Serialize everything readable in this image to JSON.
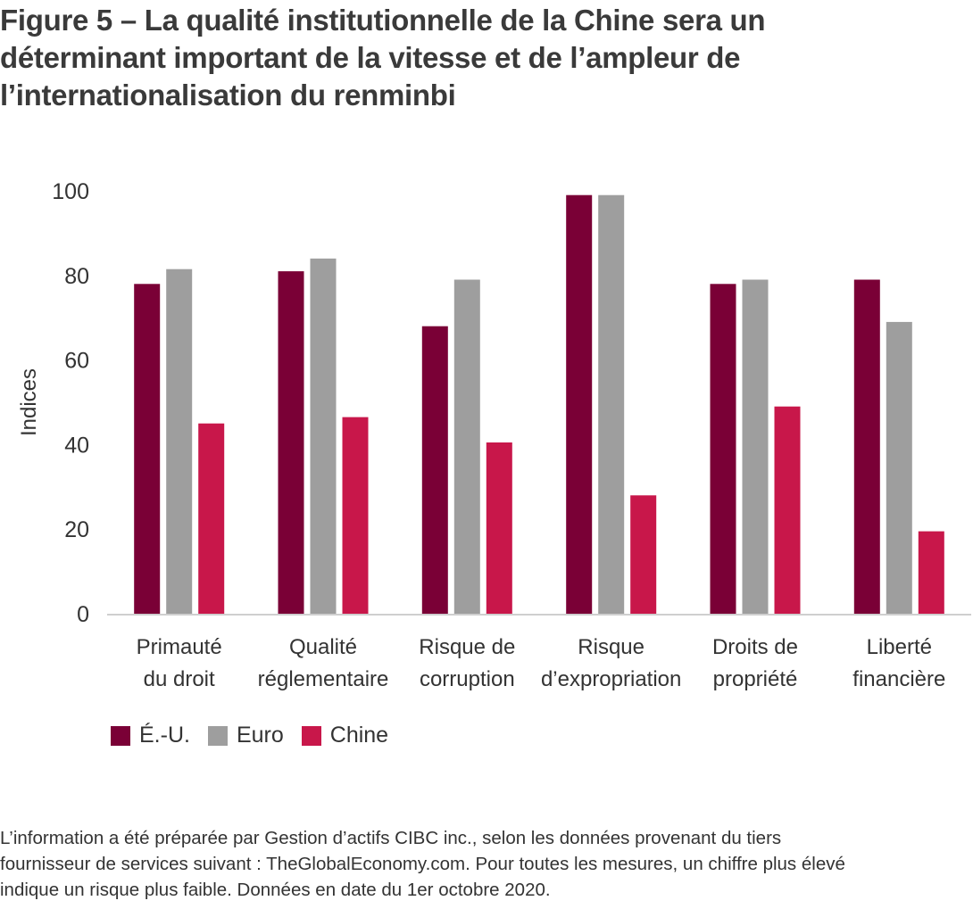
{
  "title_lines": [
    "Figure 5 – La qualité institutionnelle de la Chine sera un",
    "déterminant important de la vitesse et de l’ampleur de",
    "l’internationalisation du renminbi"
  ],
  "chart_data": {
    "type": "bar",
    "title": "Figure 5 – La qualité institutionnelle de la Chine sera un déterminant important de la vitesse et de l’ampleur de l’internationalisation du renminbi",
    "ylabel": "Indices",
    "xlabel": "",
    "ylim": [
      0,
      100
    ],
    "yticks": [
      0,
      20,
      40,
      60,
      80,
      100
    ],
    "grid": false,
    "legend_position": "bottom-left",
    "categories": [
      [
        "Primauté",
        "du droit"
      ],
      [
        "Qualité",
        "réglementaire"
      ],
      [
        "Risque de",
        "corruption"
      ],
      [
        "Risque",
        "d’expropriation"
      ],
      [
        "Droits de",
        "propriété"
      ],
      [
        "Liberté",
        "financière"
      ]
    ],
    "series": [
      {
        "name": "É.-U.",
        "color": "#7a0036",
        "values": [
          78,
          81,
          68,
          99,
          78,
          79
        ]
      },
      {
        "name": "Euro",
        "color": "#9e9e9e",
        "values": [
          81.5,
          84,
          79,
          99,
          79,
          69
        ]
      },
      {
        "name": "Chine",
        "color": "#c8174a",
        "values": [
          45,
          46.5,
          40.5,
          28,
          49,
          19.5
        ]
      }
    ]
  },
  "footnote_lines": [
    "L’information a été préparée par Gestion d’actifs CIBC inc., selon les données provenant du tiers",
    "fournisseur de services suivant : TheGlobalEconomy.com. Pour toutes les mesures, un chiffre plus élevé",
    "indique un risque plus faible. Données en date du 1er octobre 2020."
  ]
}
